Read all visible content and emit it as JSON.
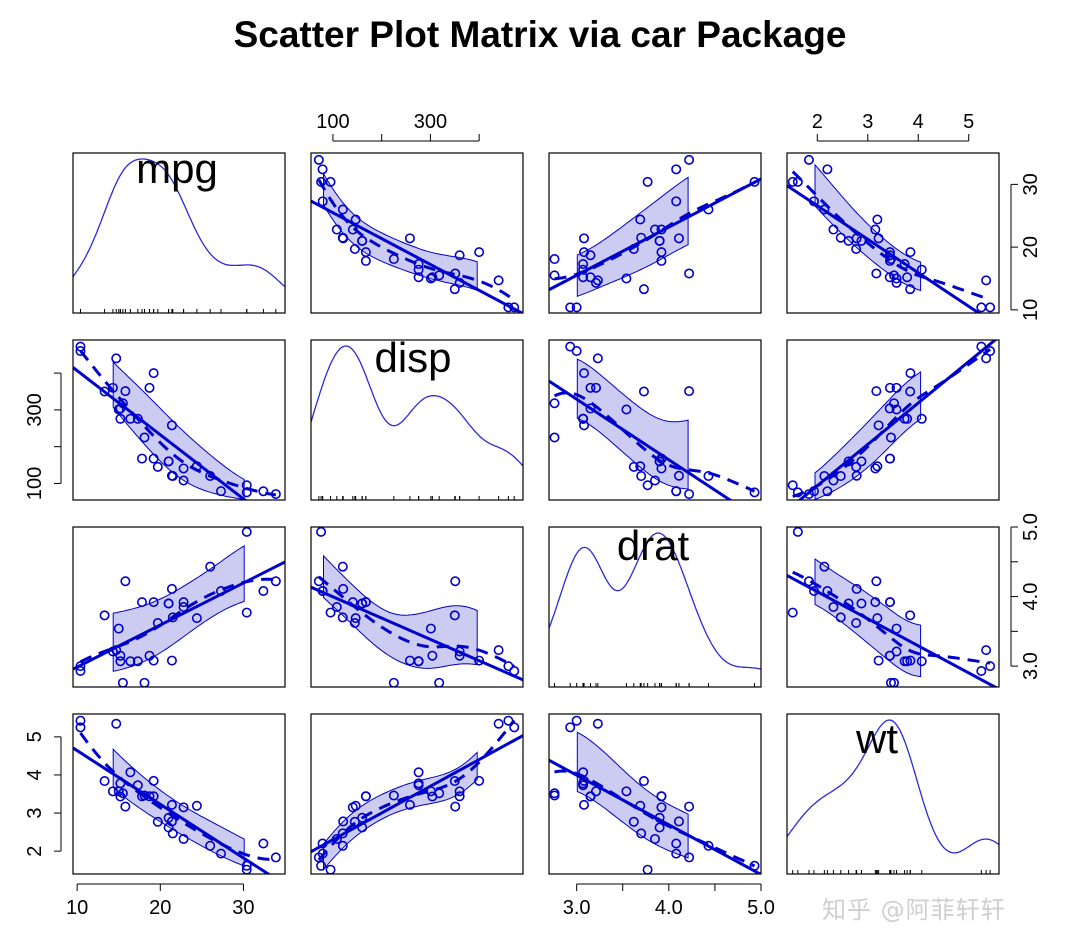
{
  "title": "Scatter Plot Matrix via car Package",
  "watermark": "知乎 @阿菲轩轩",
  "colors": {
    "series": "#0000cc",
    "band_fill": "#ccccf2",
    "frame": "#000000",
    "density": "#2a2ae0"
  },
  "chart_data": {
    "type": "scatter",
    "layout": "scatter-matrix",
    "variables": [
      "mpg",
      "disp",
      "drat",
      "wt"
    ],
    "diagonal": "density with rug",
    "off_diagonal": "scatter with linear fit (solid), loess smoother (dashed) and spread band",
    "axes": {
      "mpg": {
        "range": [
          9.5,
          35
        ],
        "ticks": [
          10,
          20,
          30
        ],
        "tick_labels": [
          "10",
          "20",
          "30"
        ],
        "label_side": "bottom,right"
      },
      "disp": {
        "range": [
          55,
          490
        ],
        "ticks": [
          100,
          200,
          300,
          400
        ],
        "tick_labels": [
          "100",
          "",
          "300",
          ""
        ],
        "label_side": "top,left"
      },
      "drat": {
        "range": [
          2.7,
          5.0
        ],
        "ticks": [
          3.0,
          3.5,
          4.0,
          4.5,
          5.0
        ],
        "tick_labels": [
          "3.0",
          "",
          "4.0",
          "",
          "5.0"
        ],
        "label_side": "bottom,right"
      },
      "wt": {
        "range": [
          1.4,
          5.6
        ],
        "ticks": [
          2,
          3,
          4,
          5
        ],
        "tick_labels": [
          "2",
          "3",
          "4",
          "5"
        ],
        "label_side": "top,left"
      }
    },
    "observations": [
      {
        "mpg": 21.0,
        "disp": 160,
        "drat": 3.9,
        "wt": 2.62
      },
      {
        "mpg": 21.0,
        "disp": 160,
        "drat": 3.9,
        "wt": 2.875
      },
      {
        "mpg": 22.8,
        "disp": 108,
        "drat": 3.85,
        "wt": 2.32
      },
      {
        "mpg": 21.4,
        "disp": 258,
        "drat": 3.08,
        "wt": 3.215
      },
      {
        "mpg": 18.7,
        "disp": 360,
        "drat": 3.15,
        "wt": 3.44
      },
      {
        "mpg": 18.1,
        "disp": 225,
        "drat": 2.76,
        "wt": 3.46
      },
      {
        "mpg": 14.3,
        "disp": 360,
        "drat": 3.21,
        "wt": 3.57
      },
      {
        "mpg": 24.4,
        "disp": 146.7,
        "drat": 3.69,
        "wt": 3.19
      },
      {
        "mpg": 22.8,
        "disp": 140.8,
        "drat": 3.92,
        "wt": 3.15
      },
      {
        "mpg": 19.2,
        "disp": 167.6,
        "drat": 3.92,
        "wt": 3.44
      },
      {
        "mpg": 17.8,
        "disp": 167.6,
        "drat": 3.92,
        "wt": 3.44
      },
      {
        "mpg": 16.4,
        "disp": 275.8,
        "drat": 3.07,
        "wt": 4.07
      },
      {
        "mpg": 17.3,
        "disp": 275.8,
        "drat": 3.07,
        "wt": 3.73
      },
      {
        "mpg": 15.2,
        "disp": 275.8,
        "drat": 3.07,
        "wt": 3.78
      },
      {
        "mpg": 10.4,
        "disp": 472,
        "drat": 2.93,
        "wt": 5.25
      },
      {
        "mpg": 10.4,
        "disp": 460,
        "drat": 3.0,
        "wt": 5.424
      },
      {
        "mpg": 14.7,
        "disp": 440,
        "drat": 3.23,
        "wt": 5.345
      },
      {
        "mpg": 32.4,
        "disp": 78.7,
        "drat": 4.08,
        "wt": 2.2
      },
      {
        "mpg": 30.4,
        "disp": 75.7,
        "drat": 4.93,
        "wt": 1.615
      },
      {
        "mpg": 33.9,
        "disp": 71.1,
        "drat": 4.22,
        "wt": 1.835
      },
      {
        "mpg": 21.5,
        "disp": 120.1,
        "drat": 3.7,
        "wt": 2.465
      },
      {
        "mpg": 15.5,
        "disp": 318,
        "drat": 2.76,
        "wt": 3.52
      },
      {
        "mpg": 15.2,
        "disp": 304,
        "drat": 3.15,
        "wt": 3.435
      },
      {
        "mpg": 13.3,
        "disp": 350,
        "drat": 3.73,
        "wt": 3.84
      },
      {
        "mpg": 19.2,
        "disp": 400,
        "drat": 3.08,
        "wt": 3.845
      },
      {
        "mpg": 27.3,
        "disp": 79,
        "drat": 4.08,
        "wt": 1.935
      },
      {
        "mpg": 26.0,
        "disp": 120.3,
        "drat": 4.43,
        "wt": 2.14
      },
      {
        "mpg": 30.4,
        "disp": 95.1,
        "drat": 3.77,
        "wt": 1.513
      },
      {
        "mpg": 15.8,
        "disp": 351,
        "drat": 4.22,
        "wt": 3.17
      },
      {
        "mpg": 19.7,
        "disp": 145,
        "drat": 3.62,
        "wt": 2.77
      },
      {
        "mpg": 15.0,
        "disp": 301,
        "drat": 3.54,
        "wt": 3.57
      },
      {
        "mpg": 21.4,
        "disp": 121,
        "drat": 4.11,
        "wt": 2.78
      }
    ]
  }
}
